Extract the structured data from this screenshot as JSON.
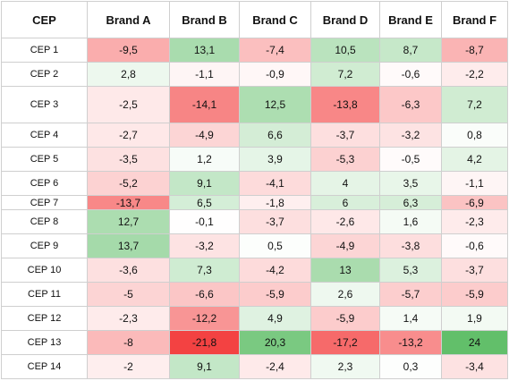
{
  "chart_data": {
    "type": "heatmap",
    "corner_label": "CEP",
    "columns": [
      "Brand A",
      "Brand B",
      "Brand C",
      "Brand D",
      "Brand E",
      "Brand F"
    ],
    "rows": [
      {
        "label": "CEP 1",
        "values": [
          "-9,5",
          "13,1",
          "-7,4",
          "10,5",
          "8,7",
          "-8,7"
        ]
      },
      {
        "label": "CEP 2",
        "values": [
          "2,8",
          "-1,1",
          "-0,9",
          "7,2",
          "-0,6",
          "-2,2"
        ]
      },
      {
        "label": "CEP 3",
        "values": [
          "-2,5",
          "-14,1",
          "12,5",
          "-13,8",
          "-6,3",
          "7,2"
        ]
      },
      {
        "label": "CEP 4",
        "values": [
          "-2,7",
          "-4,9",
          "6,6",
          "-3,7",
          "-3,2",
          "0,8"
        ]
      },
      {
        "label": "CEP 5",
        "values": [
          "-3,5",
          "1,2",
          "3,9",
          "-5,3",
          "-0,5",
          "4,2"
        ]
      },
      {
        "label": "CEP 6",
        "values": [
          "-5,2",
          "9,1",
          "-4,1",
          "4",
          "3,5",
          "-1,1"
        ]
      },
      {
        "label": "CEP 7",
        "values": [
          "-13,7",
          "6,5",
          "-1,8",
          "6",
          "6,3",
          "-6,9"
        ]
      },
      {
        "label": "CEP 8",
        "values": [
          "12,7",
          "-0,1",
          "-3,7",
          "-2,6",
          "1,6",
          "-2,3"
        ]
      },
      {
        "label": "CEP 9",
        "values": [
          "13,7",
          "-3,2",
          "0,5",
          "-4,9",
          "-3,8",
          "-0,6"
        ]
      },
      {
        "label": "CEP 10",
        "values": [
          "-3,6",
          "7,3",
          "-4,2",
          "13",
          "5,3",
          "-3,7"
        ]
      },
      {
        "label": "CEP 11",
        "values": [
          "-5",
          "-6,6",
          "-5,9",
          "2,6",
          "-5,7",
          "-5,9"
        ]
      },
      {
        "label": "CEP 12",
        "values": [
          "-2,3",
          "-12,2",
          "4,9",
          "-5,9",
          "1,4",
          "1,9"
        ]
      },
      {
        "label": "CEP 13",
        "values": [
          "-8",
          "-21,8",
          "20,3",
          "-17,2",
          "-13,2",
          "24"
        ]
      },
      {
        "label": "CEP 14",
        "values": [
          "-2",
          "9,1",
          "-2,4",
          "2,3",
          "0,3",
          "-3,4"
        ]
      }
    ],
    "colors": {
      "positive": "#62bf6a",
      "negative": "#f22f2f",
      "neutral": "#ffffff",
      "border": "#cfcfcf",
      "text": "#111111"
    },
    "grid": true
  }
}
